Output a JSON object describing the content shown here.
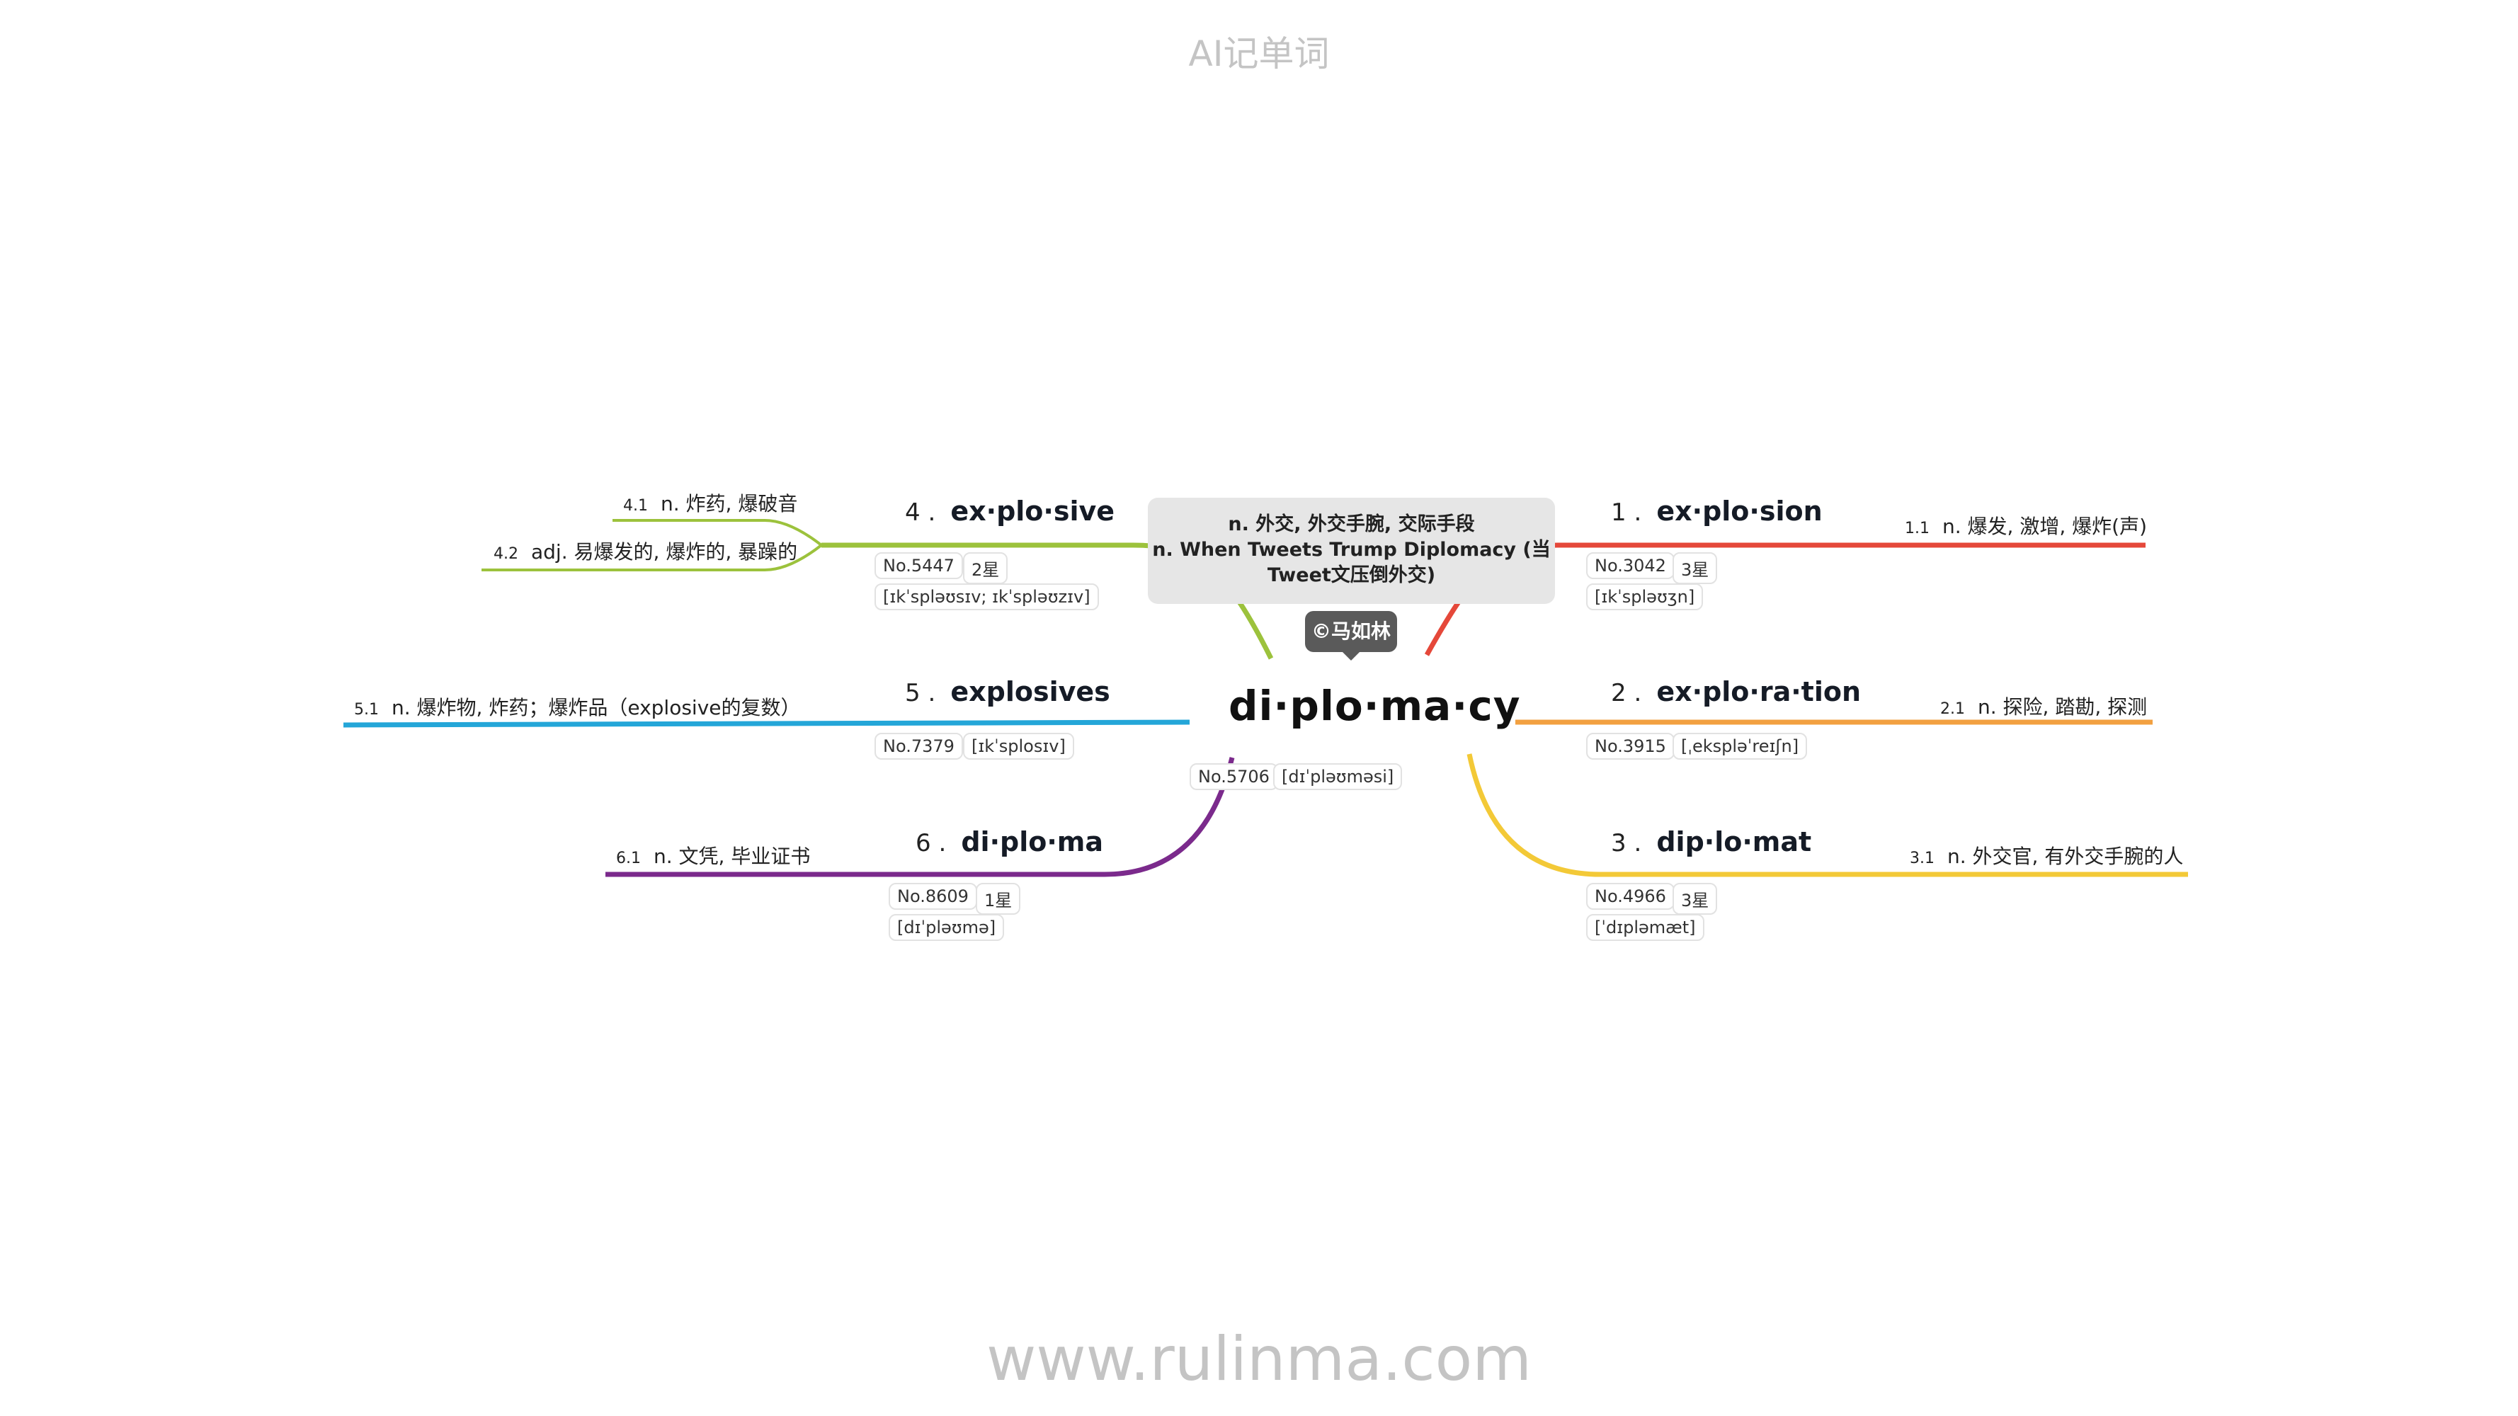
{
  "header": {
    "title": "AI记单词"
  },
  "footer": {
    "url": "www.rulinma.com"
  },
  "root": {
    "word": "di·plo·ma·cy",
    "meanings": [
      "n. 外交, 外交手腕, 交际手段",
      "n. When Tweets Trump Diplomacy (当Tweet文压倒外交)"
    ],
    "badge": "©马如林",
    "no": "No.5706",
    "phonetic": "[dɪˈpləʊməsi]"
  },
  "colors": {
    "red": "#e5483a",
    "orange": "#f2a041",
    "yellow": "#f3c937",
    "green": "#9cc23c",
    "blue": "#24a6d8",
    "purple": "#7b2a8c"
  },
  "branches": [
    {
      "num": "1 .",
      "word": "ex·plo·sion",
      "no": "No.3042",
      "stars": "3星",
      "phonetic": "[ɪkˈspləʊʒn]",
      "defs": [
        {
          "n": "1.1",
          "text": "n. 爆发, 激增, 爆炸(声)"
        }
      ]
    },
    {
      "num": "2 .",
      "word": "ex·plo·ra·tion",
      "no": "No.3915",
      "phonetic": "[ˌekspləˈreɪʃn]",
      "defs": [
        {
          "n": "2.1",
          "text": "n. 探险, 踏勘, 探测"
        }
      ]
    },
    {
      "num": "3 .",
      "word": "dip·lo·mat",
      "no": "No.4966",
      "stars": "3星",
      "phonetic": "[ˈdɪpləmæt]",
      "defs": [
        {
          "n": "3.1",
          "text": "n. 外交官, 有外交手腕的人"
        }
      ]
    },
    {
      "num": "4 .",
      "word": "ex·plo·sive",
      "no": "No.5447",
      "stars": "2星",
      "phonetic": "[ɪkˈspləʊsɪv; ɪkˈspləʊzɪv]",
      "defs": [
        {
          "n": "4.1",
          "text": "n. 炸药, 爆破音"
        },
        {
          "n": "4.2",
          "text": "adj. 易爆发的, 爆炸的, 暴躁的"
        }
      ]
    },
    {
      "num": "5 .",
      "word": "explosives",
      "no": "No.7379",
      "phonetic": "[ɪkˈsplosɪv]",
      "defs": [
        {
          "n": "5.1",
          "text": "n. 爆炸物, 炸药；爆炸品（explosive的复数）"
        }
      ]
    },
    {
      "num": "6 .",
      "word": "di·plo·ma",
      "no": "No.8609",
      "stars": "1星",
      "phonetic": "[dɪˈpləʊmə]",
      "defs": [
        {
          "n": "6.1",
          "text": "n. 文凭, 毕业证书"
        }
      ]
    }
  ]
}
